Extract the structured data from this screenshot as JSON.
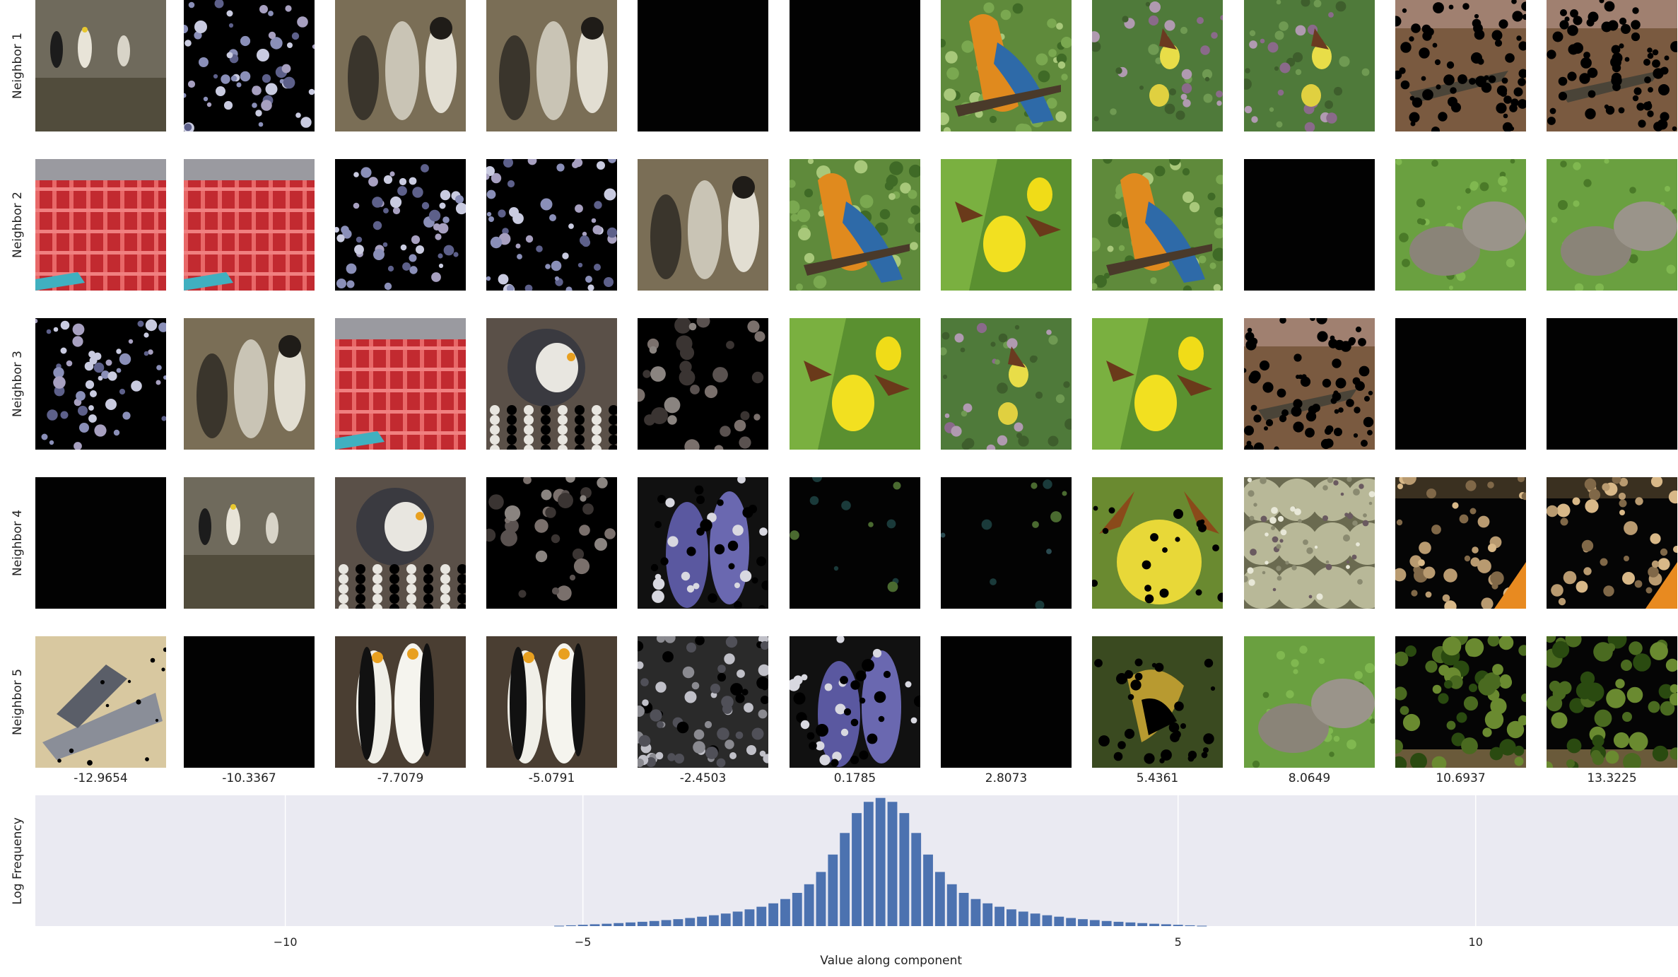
{
  "figure": {
    "row_labels": [
      "Neighbor 1",
      "Neighbor 2",
      "Neighbor 3",
      "Neighbor 4",
      "Neighbor 5"
    ],
    "column_values": [
      "-12.9654",
      "-10.3367",
      "-7.7079",
      "-5.0791",
      "-2.4503",
      "0.1785",
      "2.8073",
      "5.4361",
      "8.0649",
      "10.6937",
      "13.3225"
    ],
    "tiles": [
      [
        "penguins-rock",
        "dark-dots",
        "penguins",
        "penguins",
        "black",
        "black",
        "macaw",
        "orchid-field",
        "orchid-field",
        "lizard-dots",
        "lizard-dots"
      ],
      [
        "paddlewheel",
        "paddlewheel",
        "dark-dots",
        "dark-dots",
        "penguins",
        "macaw",
        "orchid-close",
        "macaw",
        "black",
        "armadillo",
        "armadillo"
      ],
      [
        "dark-dots",
        "penguins",
        "paddlewheel",
        "penguin-dots",
        "dark-shadows",
        "orchid-close",
        "orchid-field",
        "orchid-close",
        "lizard-dots",
        "black",
        "black"
      ],
      [
        "black",
        "penguins-rock",
        "penguin-dots",
        "dark-shadows",
        "purple-penguins",
        "dark-green",
        "dark-green",
        "orchid-close-dots",
        "custard-apple",
        "tan-dots",
        "tan-dots"
      ],
      [
        "hand-plane",
        "black",
        "emperor-penguins",
        "emperor-penguins",
        "grey-dots",
        "purple-penguins",
        "black",
        "orchid-dark",
        "armadillo",
        "leafy-dots",
        "leafy-dots"
      ]
    ]
  },
  "chart_data": {
    "type": "bar",
    "title": "",
    "xlabel": "Value along component",
    "ylabel": "Log Frequency",
    "xlim": [
      -14.2,
      13.4
    ],
    "xticks": [
      -10,
      -5,
      5,
      10
    ],
    "x": [
      -5.4,
      -5.2,
      -5.0,
      -4.8,
      -4.6,
      -4.4,
      -4.2,
      -4.0,
      -3.8,
      -3.6,
      -3.4,
      -3.2,
      -3.0,
      -2.8,
      -2.6,
      -2.4,
      -2.2,
      -2.0,
      -1.8,
      -1.6,
      -1.4,
      -1.2,
      -1.0,
      -0.8,
      -0.6,
      -0.4,
      -0.2,
      0.0,
      0.2,
      0.4,
      0.6,
      0.8,
      1.0,
      1.2,
      1.4,
      1.6,
      1.8,
      2.0,
      2.2,
      2.4,
      2.6,
      2.8,
      3.0,
      3.2,
      3.4,
      3.6,
      3.8,
      4.0,
      4.2,
      4.4,
      4.6,
      4.8,
      5.0,
      5.2,
      5.4
    ],
    "values": [
      0.3,
      0.6,
      1.0,
      1.4,
      1.8,
      2.3,
      2.8,
      3.3,
      3.9,
      4.6,
      5.3,
      6.2,
      7.2,
      8.3,
      9.6,
      11.1,
      12.8,
      14.8,
      17.4,
      20.7,
      25.4,
      32.0,
      41.4,
      54.7,
      71.2,
      86.4,
      95.0,
      98.0,
      95.0,
      86.4,
      71.2,
      54.7,
      41.4,
      32.0,
      25.4,
      20.7,
      17.4,
      14.8,
      12.8,
      11.1,
      9.6,
      8.3,
      7.2,
      6.2,
      5.3,
      4.6,
      3.9,
      3.3,
      2.8,
      2.3,
      1.8,
      1.4,
      1.0,
      0.6,
      0.3
    ],
    "ylim": [
      0,
      100
    ],
    "bar_color": "#4c72b0",
    "grid": true
  },
  "colors": {
    "plot_bg": "#eaeaf2",
    "grid": "#ffffff",
    "axis_text": "#222222"
  }
}
